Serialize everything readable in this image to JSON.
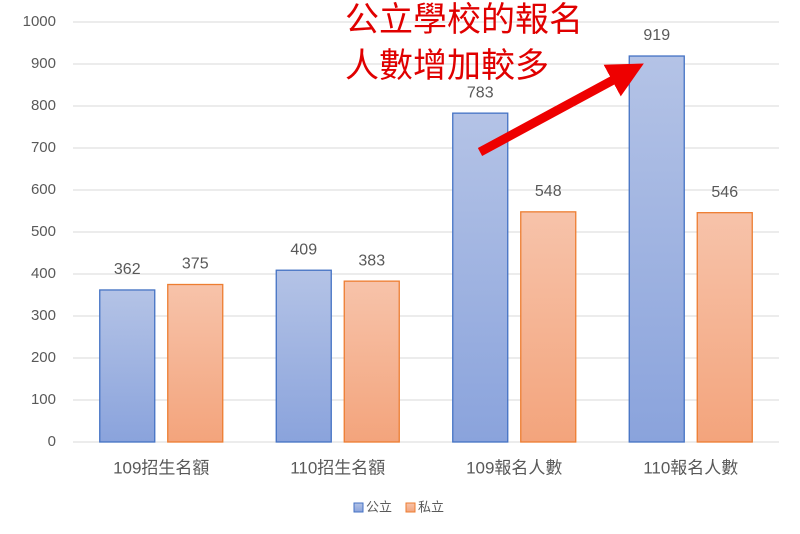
{
  "chart_data": {
    "type": "bar",
    "annotation": [
      "公立學校的報名",
      "人數增加較多"
    ],
    "categories": [
      "109招生名額",
      "110招生名額",
      "109報名人數",
      "110報名人數"
    ],
    "series": [
      {
        "name": "公立",
        "color": "#4472c4",
        "values": [
          362,
          409,
          783,
          919
        ]
      },
      {
        "name": "私立",
        "color": "#ed7d31",
        "values": [
          375,
          383,
          548,
          546
        ]
      }
    ],
    "ylim": [
      0,
      1000
    ],
    "yticks": [
      0,
      100,
      200,
      300,
      400,
      500,
      600,
      700,
      800,
      900,
      1000
    ],
    "grid": true,
    "legend": "bottom"
  }
}
